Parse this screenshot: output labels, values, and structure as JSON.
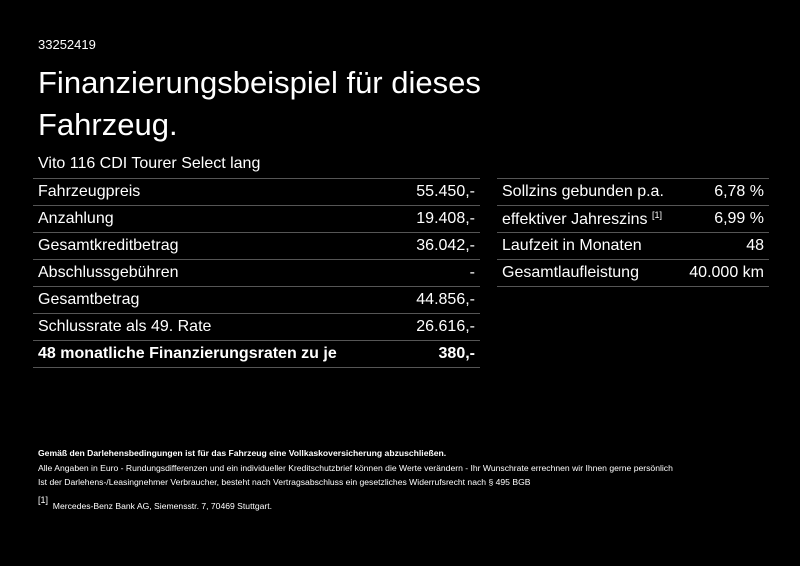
{
  "header": {
    "id": "33252419",
    "title": "Finanzierungsbeispiel für dieses Fahrzeug.",
    "model": "Vito 116 CDI Tourer Select lang"
  },
  "left_table": {
    "rows": [
      [
        "Fahrzeugpreis",
        "55.450,-"
      ],
      [
        "Anzahlung",
        "19.408,-"
      ],
      [
        "Gesamtkreditbetrag",
        "36.042,-"
      ],
      [
        "Abschlussgebühren",
        "-"
      ],
      [
        "Gesamtbetrag",
        "44.856,-"
      ],
      [
        "Schlussrate als 49. Rate",
        "26.616,-"
      ],
      [
        "48 monatliche Finanzierungsraten zu je",
        "380,-"
      ]
    ]
  },
  "right_table": {
    "rows": [
      [
        "Sollzins gebunden p.a.",
        "6,78 %"
      ],
      [
        "effektiver Jahreszins",
        "6,99 %",
        "[1]"
      ],
      [
        "Laufzeit in Monaten",
        "48"
      ],
      [
        "Gesamtlaufleistung",
        "40.000 km"
      ]
    ]
  },
  "footer": {
    "notice": "Gemäß den Darlehensbedingungen ist für das Fahrzeug eine Vollkaskoversicherung abzuschließen.",
    "lines": [
      "Alle Angaben in Euro - Rundungsdifferenzen und ein individueller Kreditschutzbrief können die Werte verändern - Ihr Wunschrate errechnen wir Ihnen gerne persönlich",
      "Ist der Darlehens-/Leasingnehmer Verbraucher, besteht nach Vertragsabschluss ein gesetzliches Widerrufsrecht nach § 495 BGB"
    ],
    "note_marker": "[1]",
    "note": "Mercedes-Benz Bank AG, Siemensstr. 7, 70469 Stuttgart."
  }
}
